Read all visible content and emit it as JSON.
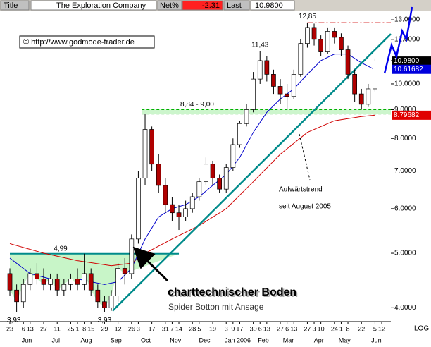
{
  "header": {
    "title_label": "Title",
    "name": "The Exploration Company",
    "net_label": "Net%",
    "net": "-2.31",
    "last_label": "Last",
    "last": "10.9800"
  },
  "copyright": "© http://www.godmode-trader.de",
  "chart_data": {
    "type": "candlestick",
    "ylog": true,
    "scale_label": "LOG",
    "ylim": [
      3.79,
      13.54
    ],
    "yticks": [
      {
        "value": 4,
        "label": "4.0000"
      },
      {
        "value": 5,
        "label": "5.0000"
      },
      {
        "value": 6,
        "label": "6.0000"
      },
      {
        "value": 7,
        "label": "7.0000"
      },
      {
        "value": 8,
        "label": "8.0000"
      },
      {
        "value": 9,
        "label": "9.0000"
      },
      {
        "value": 10,
        "label": "10.0000"
      },
      {
        "value": 11,
        "label": "11.0000"
      },
      {
        "value": 12,
        "label": "12.0000"
      },
      {
        "value": 13,
        "label": "13.0000"
      }
    ],
    "xlim": [
      -1.46,
      56.35
    ],
    "xticks": [
      {
        "value": 0,
        "label": "23"
      },
      {
        "value": 2,
        "label": "6"
      },
      {
        "value": 3,
        "label": "13"
      },
      {
        "value": 5,
        "label": "27"
      },
      {
        "value": 7,
        "label": "11"
      },
      {
        "value": 9,
        "label": "25"
      },
      {
        "value": 10,
        "label": "1"
      },
      {
        "value": 11,
        "label": "8"
      },
      {
        "value": 12,
        "label": "15"
      },
      {
        "value": 14,
        "label": "29"
      },
      {
        "value": 16,
        "label": "12"
      },
      {
        "value": 18,
        "label": "26"
      },
      {
        "value": 19,
        "label": "3"
      },
      {
        "value": 21,
        "label": "17"
      },
      {
        "value": 23,
        "label": "31"
      },
      {
        "value": 24,
        "label": "7"
      },
      {
        "value": 25,
        "label": "14"
      },
      {
        "value": 27,
        "label": "28"
      },
      {
        "value": 28,
        "label": "5"
      },
      {
        "value": 30,
        "label": "19"
      },
      {
        "value": 32,
        "label": "3"
      },
      {
        "value": 33,
        "label": "9"
      },
      {
        "value": 34,
        "label": "17"
      },
      {
        "value": 36,
        "label": "30"
      },
      {
        "value": 37,
        "label": "6"
      },
      {
        "value": 38,
        "label": "13"
      },
      {
        "value": 40,
        "label": "27"
      },
      {
        "value": 41,
        "label": "6"
      },
      {
        "value": 42,
        "label": "13"
      },
      {
        "value": 44,
        "label": "27"
      },
      {
        "value": 45,
        "label": "3"
      },
      {
        "value": 46,
        "label": "10"
      },
      {
        "value": 48,
        "label": "24"
      },
      {
        "value": 49,
        "label": "1"
      },
      {
        "value": 50,
        "label": "8"
      },
      {
        "value": 52,
        "label": "22"
      },
      {
        "value": 54,
        "label": "5"
      },
      {
        "value": 55,
        "label": "12"
      }
    ],
    "month_ticks": [
      {
        "value": 2.5,
        "label": "Jun"
      },
      {
        "value": 6.8,
        "label": "Jul"
      },
      {
        "value": 11.3,
        "label": "Aug"
      },
      {
        "value": 15.7,
        "label": "Sep"
      },
      {
        "value": 20.1,
        "label": "Oct"
      },
      {
        "value": 24.5,
        "label": "Nov"
      },
      {
        "value": 28.8,
        "label": "Dec"
      },
      {
        "value": 33.7,
        "label": "Jan 2006"
      },
      {
        "value": 37.5,
        "label": "Feb"
      },
      {
        "value": 41.2,
        "label": "Mar"
      },
      {
        "value": 45.7,
        "label": "Apr"
      },
      {
        "value": 49.5,
        "label": "May"
      },
      {
        "value": 54.2,
        "label": "Jun"
      }
    ],
    "up_color": "#ffffff",
    "down_color": "#b00000",
    "x": [
      0,
      1,
      2,
      3,
      4,
      5,
      6,
      7,
      8,
      9,
      10,
      11,
      12,
      13,
      14,
      15,
      16,
      17,
      18,
      19,
      20,
      21,
      22,
      23,
      24,
      25,
      26,
      27,
      28,
      29,
      30,
      31,
      32,
      33,
      34,
      35,
      36,
      37,
      38,
      39,
      40,
      41,
      42,
      43,
      44,
      45,
      46,
      47,
      48,
      49,
      50,
      51,
      52,
      53,
      54
    ],
    "open": [
      4.6,
      4.3,
      4.1,
      4.4,
      4.6,
      4.5,
      4.4,
      4.5,
      4.3,
      4.4,
      4.5,
      4.4,
      4.6,
      4.3,
      4.1,
      4.0,
      4.2,
      4.7,
      4.6,
      5.3,
      6.8,
      8.3,
      7.2,
      6.6,
      6.1,
      5.9,
      5.8,
      6.0,
      6.3,
      6.7,
      7.2,
      6.8,
      6.5,
      7.1,
      7.8,
      8.5,
      9.0,
      10.2,
      11.0,
      10.4,
      9.9,
      9.6,
      9.5,
      10.4,
      11.8,
      12.6,
      12.0,
      11.4,
      12.4,
      12.1,
      11.5,
      10.4,
      9.6,
      9.2,
      9.8
    ],
    "high": [
      4.7,
      4.4,
      4.5,
      4.7,
      4.8,
      4.7,
      4.6,
      4.6,
      4.5,
      4.6,
      4.7,
      4.99,
      4.7,
      4.4,
      4.2,
      4.3,
      4.8,
      4.9,
      5.4,
      7.0,
      8.84,
      8.4,
      7.5,
      6.8,
      6.3,
      6.1,
      6.2,
      6.4,
      6.8,
      7.4,
      7.3,
      6.9,
      7.2,
      8.0,
      8.6,
      9.2,
      10.5,
      11.43,
      11.2,
      10.6,
      10.2,
      10.0,
      10.6,
      12.0,
      12.85,
      12.8,
      12.2,
      12.6,
      12.6,
      12.3,
      11.7,
      10.6,
      9.8,
      10.0,
      11.1
    ],
    "low": [
      4.2,
      3.93,
      4.0,
      4.3,
      4.4,
      4.3,
      4.3,
      4.2,
      4.2,
      4.3,
      4.3,
      4.3,
      4.2,
      4.0,
      3.93,
      3.95,
      4.1,
      4.4,
      4.5,
      5.2,
      6.6,
      7.0,
      6.4,
      5.9,
      5.7,
      5.5,
      5.7,
      5.9,
      6.2,
      6.6,
      6.6,
      6.4,
      6.4,
      7.0,
      7.7,
      8.4,
      8.9,
      10.0,
      10.1,
      9.6,
      9.2,
      9.0,
      9.4,
      10.3,
      11.6,
      11.7,
      11.2,
      11.3,
      11.8,
      11.2,
      10.2,
      9.3,
      9.0,
      9.1,
      9.7
    ],
    "close": [
      4.3,
      4.1,
      4.4,
      4.6,
      4.5,
      4.4,
      4.5,
      4.3,
      4.4,
      4.5,
      4.4,
      4.6,
      4.3,
      4.1,
      4.0,
      4.2,
      4.7,
      4.6,
      5.3,
      6.8,
      8.3,
      7.2,
      6.6,
      6.1,
      5.9,
      5.8,
      6.0,
      6.3,
      6.7,
      7.2,
      6.8,
      6.5,
      7.1,
      7.8,
      8.5,
      9.0,
      10.2,
      11.0,
      10.4,
      9.9,
      9.6,
      9.5,
      10.4,
      11.8,
      12.6,
      12.0,
      11.4,
      12.4,
      12.1,
      11.5,
      10.4,
      9.6,
      9.2,
      9.8,
      10.98
    ],
    "overlays": [
      {
        "color": "#d00000",
        "x": [
          0,
          5,
          10,
          15,
          18,
          20,
          24,
          28,
          32,
          36,
          40,
          44,
          48,
          52,
          54
        ],
        "values": [
          5.2,
          5.0,
          4.85,
          4.75,
          4.8,
          5.0,
          5.3,
          5.6,
          6.0,
          6.7,
          7.5,
          8.2,
          8.6,
          8.75,
          8.8
        ]
      },
      {
        "color": "#0000cc",
        "x": [
          0,
          3,
          6,
          10,
          14,
          16,
          18,
          20,
          22,
          24,
          26,
          28,
          30,
          32,
          34,
          36,
          38,
          40,
          42,
          44,
          46,
          48,
          50,
          52,
          54
        ],
        "values": [
          4.9,
          4.6,
          4.5,
          4.5,
          4.4,
          4.45,
          4.7,
          5.3,
          5.8,
          6.0,
          6.1,
          6.3,
          6.6,
          6.9,
          7.4,
          8.2,
          8.9,
          9.4,
          9.8,
          10.4,
          11.0,
          11.3,
          11.3,
          10.9,
          10.6
        ]
      }
    ],
    "trendline": {
      "color": "#008b8b",
      "x": [
        15.2,
        56.35
      ],
      "values": [
        3.95,
        12.27
      ]
    },
    "levels": [
      {
        "values": [
          4.99
        ],
        "from": 0,
        "to": 25,
        "color": "#008b8b",
        "label": "4,99"
      },
      {
        "values": [
          8.84,
          9.0
        ],
        "from": 19.5,
        "color": "#00b000",
        "dash": "4,3",
        "label": "8,84 - 9,00"
      },
      {
        "values": [
          12.85
        ],
        "from": 44,
        "color": "#d00000",
        "dash": "8,3,2,3"
      }
    ],
    "point_labels": [
      {
        "x": 0.6,
        "value": 3.93,
        "label": "3,93",
        "side": "below"
      },
      {
        "x": 14,
        "value": 3.93,
        "label": "3,93",
        "side": "below"
      },
      {
        "x": 37,
        "value": 11.43,
        "label": "11,43",
        "side": "above"
      },
      {
        "x": 44,
        "value": 12.85,
        "label": "12,85",
        "side": "above"
      }
    ],
    "price_tags": [
      {
        "value": 10.98,
        "label": "10.9800",
        "color": "#000000"
      },
      {
        "value": 10.61682,
        "label": "10.61682",
        "color": "#0000dd"
      },
      {
        "value": 8.79682,
        "label": "8.79682",
        "color": "#e00000"
      }
    ],
    "trend_note": [
      "Aufwärtstrend",
      "seit August 2005"
    ],
    "callout": {
      "title": "charttechnischer Boden",
      "subtitle": "Spider Botton mit Ansage"
    }
  }
}
